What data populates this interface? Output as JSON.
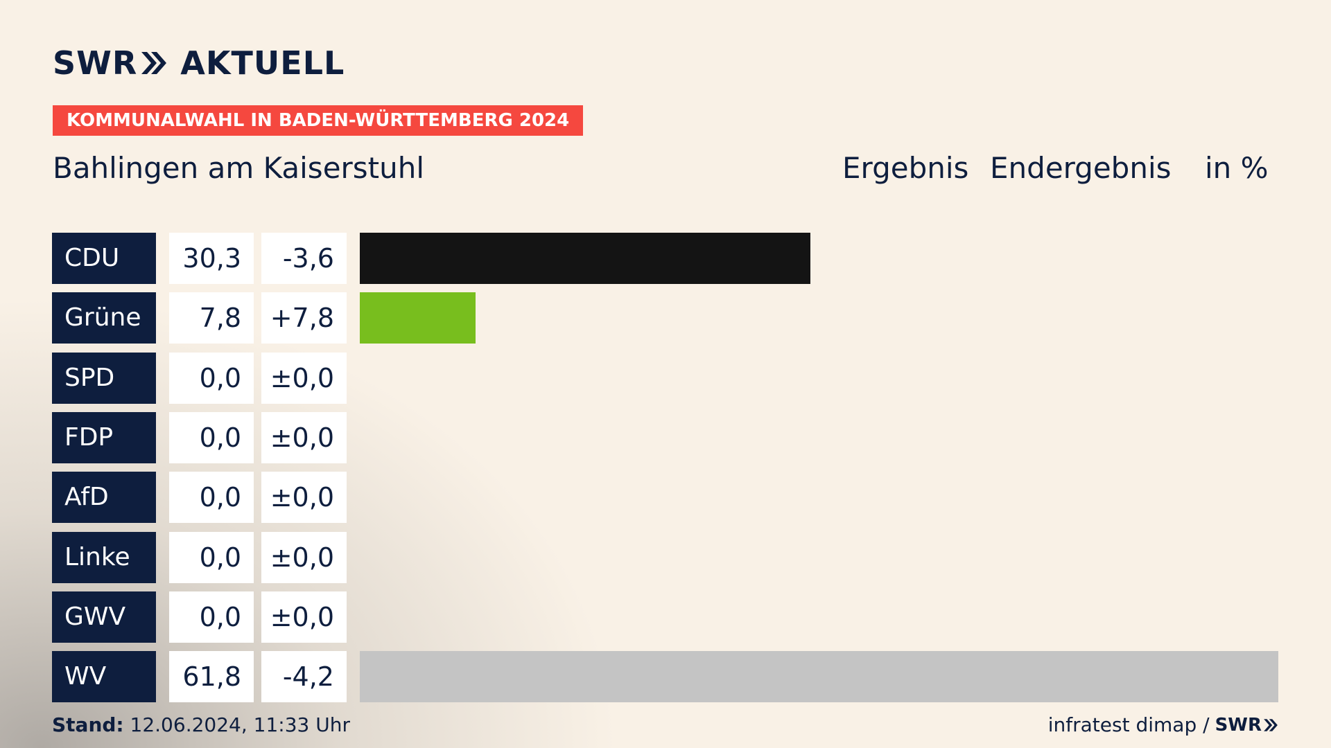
{
  "brand": {
    "logo_left": "SWR",
    "logo_right": "AKTUELL",
    "footer_logo": "SWR"
  },
  "tag": "KOMMUNALWAHL IN BADEN-WÜRTTEMBERG 2024",
  "place": "Bahlingen am Kaiserstuhl",
  "headers": {
    "result": "Ergebnis",
    "final": "Endergebnis",
    "unit": "in %"
  },
  "footer": {
    "stand_label": "Stand:",
    "stand_value": "12.06.2024, 11:33 Uhr",
    "source": "infratest dimap /"
  },
  "colors": {
    "navy": "#0e1e3e",
    "tag_red": "#f5483f"
  },
  "chart_data": {
    "type": "bar",
    "orientation": "horizontal",
    "xlim": [
      0,
      61.8
    ],
    "rows": [
      {
        "party": "CDU",
        "value": 30.3,
        "value_label": "30,3",
        "diff_label": "-3,6",
        "color": "#141414"
      },
      {
        "party": "Grüne",
        "value": 7.8,
        "value_label": "7,8",
        "diff_label": "+7,8",
        "color": "#78be1e"
      },
      {
        "party": "SPD",
        "value": 0.0,
        "value_label": "0,0",
        "diff_label": "±0,0",
        "color": "#e3000f"
      },
      {
        "party": "FDP",
        "value": 0.0,
        "value_label": "0,0",
        "diff_label": "±0,0",
        "color": "#ffd600"
      },
      {
        "party": "AfD",
        "value": 0.0,
        "value_label": "0,0",
        "diff_label": "±0,0",
        "color": "#00a2de"
      },
      {
        "party": "Linke",
        "value": 0.0,
        "value_label": "0,0",
        "diff_label": "±0,0",
        "color": "#be3075"
      },
      {
        "party": "GWV",
        "value": 0.0,
        "value_label": "0,0",
        "diff_label": "±0,0",
        "color": "#9b9b9b"
      },
      {
        "party": "WV",
        "value": 61.8,
        "value_label": "61,8",
        "diff_label": "-4,2",
        "color": "#c4c4c4"
      }
    ]
  }
}
